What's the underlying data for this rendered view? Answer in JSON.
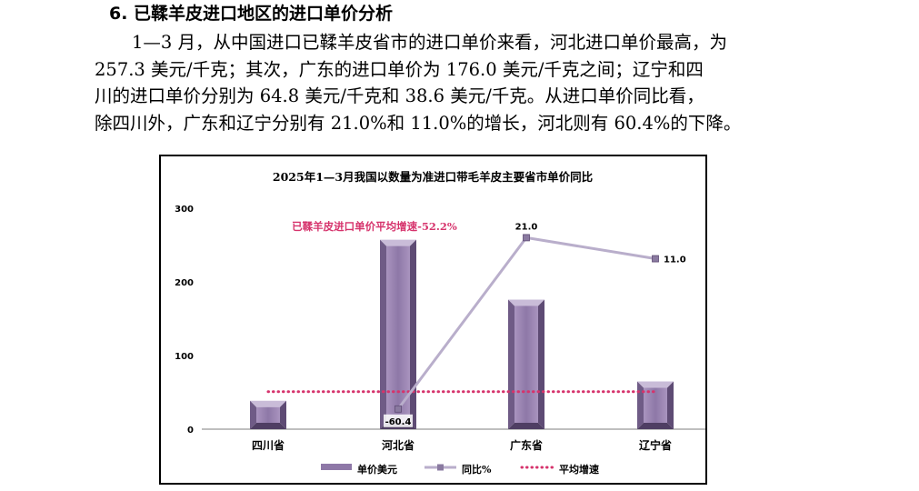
{
  "section": {
    "heading": "6. 已鞣羊皮进口地区的进口单价分析",
    "paragraph_lines": [
      "1—3 月，从中国进口已鞣羊皮省市的进口单价来看，河北进口单价最高，为",
      "257.3 美元/千克；其次，广东的进口单价为 176.0 美元/千克之间；辽宁和四",
      "川的进口单价分别为 64.8 美元/千克和 38.6 美元/千克。从进口单价同比看，",
      "除四川外，广东和辽宁分别有 21.0%和 11.0%的增长，河北则有 60.4%的下降。"
    ]
  },
  "chart_data": {
    "type": "bar",
    "title": "2025年1—3月我国以数量为准进口带毛羊皮主要省市单价同比",
    "categories": [
      "四川省",
      "河北省",
      "广东省",
      "辽宁省"
    ],
    "series": [
      {
        "name": "单价美元",
        "type": "bar",
        "axis": "left",
        "values": [
          38.6,
          257.3,
          176.0,
          64.8
        ],
        "color": "#9b86b0"
      },
      {
        "name": "同比%",
        "type": "line",
        "axis": "right",
        "values": [
          null,
          -60.4,
          21.0,
          11.0
        ],
        "labels": [
          "",
          "-60.4",
          "21.0",
          "11.0"
        ],
        "color": "#b9aecb"
      },
      {
        "name": "平均增速",
        "type": "line",
        "axis": "right",
        "value": -52.2,
        "style": "dotted",
        "color": "#d6336c"
      }
    ],
    "y_left": {
      "ylim": [
        0,
        300
      ],
      "ticks": [
        "0",
        "100",
        "200",
        "300"
      ]
    },
    "y_right": {
      "ylim": [
        -70,
        35
      ],
      "ticks": [
        "-70",
        "-35",
        "0",
        "35"
      ]
    },
    "annotation": "已鞣羊皮进口单价平均增速-52.2%",
    "legend": {
      "placement": "bottom",
      "entries": [
        "单价美元",
        "同比%",
        "平均增速"
      ]
    },
    "grid": false
  }
}
